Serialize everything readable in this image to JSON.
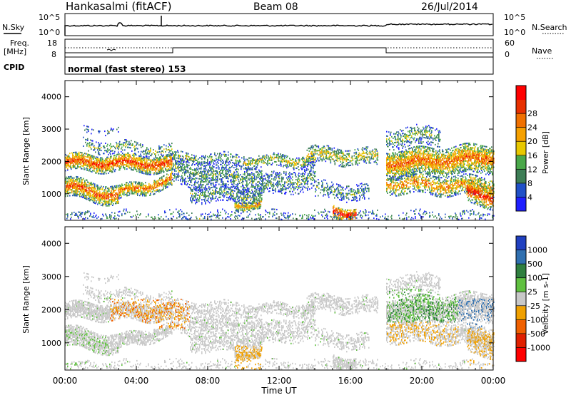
{
  "header": {
    "station": "Hankasalmi (fitACF)",
    "beam": "Beam 08",
    "date": "26/Jul/2014"
  },
  "nsky_panel": {
    "left_label": "N.Sky",
    "right_label": "N.Search",
    "ticks_top": "10^5",
    "ticks_bottom": "10^0",
    "right_ticks_top": "10^5",
    "right_ticks_bottom": "10^0"
  },
  "freq_panel": {
    "left_label_1": "Freq.",
    "left_label_2": "[MHz]",
    "right_label": "Nave",
    "left_tick_top": "18",
    "left_tick_bottom": "8",
    "right_tick_top": "60",
    "right_tick_bottom": "0"
  },
  "cpid": {
    "label": "CPID",
    "mode": "normal (fast stereo) 153"
  },
  "chart_data": [
    {
      "type": "heatmap",
      "quantity": "Power",
      "ylabel": "Slant Range [km]",
      "xlabel": "Time UT",
      "x_ticks": [
        "00:00",
        "04:00",
        "08:00",
        "12:00",
        "16:00",
        "20:00",
        "00:00"
      ],
      "y_ticks": [
        "1000",
        "2000",
        "3000",
        "4000"
      ],
      "ylim": [
        180,
        4500
      ],
      "colorbar_label": "Power [dB]",
      "colorbar_ticks": [
        "4",
        "8",
        "12",
        "16",
        "20",
        "24",
        "28"
      ],
      "colorbar_colors": [
        "#1f1fff",
        "#2050c8",
        "#3d7d55",
        "#4aa84a",
        "#e8c800",
        "#f5a000",
        "#f07000",
        "#e83000",
        "#ff0000"
      ]
    },
    {
      "type": "heatmap",
      "quantity": "Velocity",
      "ylabel": "Slant Range [km]",
      "xlabel": "Time UT",
      "x_ticks": [
        "00:00",
        "04:00",
        "08:00",
        "12:00",
        "16:00",
        "20:00",
        "00:00"
      ],
      "y_ticks": [
        "1000",
        "2000",
        "3000",
        "4000"
      ],
      "ylim": [
        180,
        4500
      ],
      "colorbar_label": "Velocity [m s-1]",
      "colorbar_ticks": [
        "1000",
        "500",
        "100",
        "25",
        "-25",
        "-100",
        "-500",
        "-1000"
      ],
      "colorbar_colors": [
        "#2040c0",
        "#3070b0",
        "#2f7f3f",
        "#60c040",
        "#c8c8c8",
        "#f0a000",
        "#f06000",
        "#e02000",
        "#ff0000"
      ]
    }
  ],
  "x_axis_title": "Time UT",
  "x_ticks": [
    "00:00",
    "04:00",
    "08:00",
    "12:00",
    "16:00",
    "20:00",
    "00:00"
  ]
}
